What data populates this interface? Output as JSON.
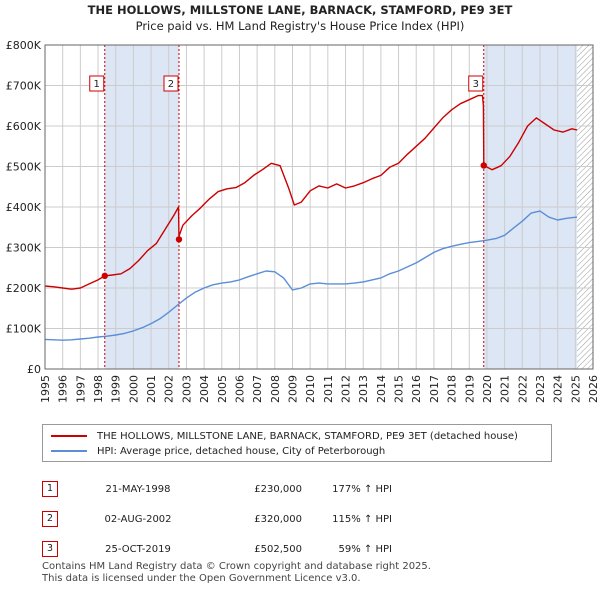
{
  "title_line1": "THE HOLLOWS, MILLSTONE LANE, BARNACK, STAMFORD, PE9 3ET",
  "title_line2": "Price paid vs. HM Land Registry's House Price Index (HPI)",
  "colors": {
    "property": "#cc0000",
    "hpi": "#5b8ed6",
    "shade": "#dce6f5",
    "grid": "#cccccc",
    "hatch": "#999999"
  },
  "chart_data": {
    "type": "line",
    "title": "THE HOLLOWS, MILLSTONE LANE, BARNACK, STAMFORD, PE9 3ET",
    "subtitle": "Price paid vs. HM Land Registry's House Price Index (HPI)",
    "xlabel": "",
    "ylabel": "",
    "xlim": [
      1995,
      2026
    ],
    "ylim": [
      0,
      800000
    ],
    "x_ticks": [
      1995,
      1996,
      1997,
      1998,
      1999,
      2000,
      2001,
      2002,
      2003,
      2004,
      2005,
      2006,
      2007,
      2008,
      2009,
      2010,
      2011,
      2012,
      2013,
      2014,
      2015,
      2016,
      2017,
      2018,
      2019,
      2020,
      2021,
      2022,
      2023,
      2024,
      2025,
      2026
    ],
    "y_ticks": [
      0,
      100000,
      200000,
      300000,
      400000,
      500000,
      600000,
      700000,
      800000
    ],
    "y_tick_labels": [
      "£0",
      "£100K",
      "£200K",
      "£300K",
      "£400K",
      "£500K",
      "£600K",
      "£700K",
      "£800K"
    ],
    "grid": true,
    "shaded_ranges": [
      [
        1998.38,
        2002.58
      ],
      [
        2019.82,
        2025.1
      ]
    ],
    "future_hatch_from": 2025.1,
    "series": [
      {
        "name": "THE HOLLOWS, MILLSTONE LANE, BARNACK, STAMFORD, PE9 3ET (detached house)",
        "color": "#cc0000",
        "x": [
          1995.0,
          1995.5,
          1996.0,
          1996.5,
          1997.0,
          1997.5,
          1998.0,
          1998.38,
          1998.8,
          1999.3,
          1999.8,
          2000.3,
          2000.8,
          2001.3,
          2001.8,
          2002.3,
          2002.55,
          2002.58,
          2002.6,
          2002.8,
          2003.3,
          2003.8,
          2004.3,
          2004.8,
          2005.3,
          2005.8,
          2006.3,
          2006.8,
          2007.3,
          2007.8,
          2008.3,
          2008.8,
          2009.1,
          2009.5,
          2010.0,
          2010.5,
          2011.0,
          2011.5,
          2012.0,
          2012.5,
          2013.0,
          2013.5,
          2014.0,
          2014.5,
          2015.0,
          2015.5,
          2016.0,
          2016.5,
          2017.0,
          2017.5,
          2018.0,
          2018.5,
          2019.0,
          2019.5,
          2019.75,
          2019.8,
          2019.82,
          2020.3,
          2020.8,
          2021.3,
          2021.8,
          2022.3,
          2022.8,
          2023.3,
          2023.8,
          2024.3,
          2024.8,
          2025.1
        ],
        "y": [
          205000,
          203000,
          200000,
          197000,
          200000,
          210000,
          220000,
          230000,
          232000,
          235000,
          248000,
          268000,
          292000,
          310000,
          345000,
          380000,
          400000,
          320000,
          330000,
          355000,
          378000,
          398000,
          420000,
          438000,
          445000,
          448000,
          460000,
          478000,
          492000,
          508000,
          502000,
          445000,
          405000,
          412000,
          440000,
          452000,
          447000,
          457000,
          447000,
          452000,
          460000,
          470000,
          478000,
          498000,
          508000,
          530000,
          550000,
          570000,
          595000,
          620000,
          640000,
          655000,
          665000,
          675000,
          675000,
          650000,
          502500,
          492000,
          502000,
          525000,
          560000,
          600000,
          620000,
          605000,
          590000,
          585000,
          593000,
          590000
        ]
      },
      {
        "name": "HPI: Average price, detached house, City of Peterborough",
        "color": "#5b8ed6",
        "x": [
          1995.0,
          1995.5,
          1996.0,
          1996.5,
          1997.0,
          1997.5,
          1998.0,
          1998.5,
          1999.0,
          1999.5,
          2000.0,
          2000.5,
          2001.0,
          2001.5,
          2002.0,
          2002.5,
          2003.0,
          2003.5,
          2004.0,
          2004.5,
          2005.0,
          2005.5,
          2006.0,
          2006.5,
          2007.0,
          2007.5,
          2008.0,
          2008.5,
          2009.0,
          2009.5,
          2010.0,
          2010.5,
          2011.0,
          2011.5,
          2012.0,
          2012.5,
          2013.0,
          2013.5,
          2014.0,
          2014.5,
          2015.0,
          2015.5,
          2016.0,
          2016.5,
          2017.0,
          2017.5,
          2018.0,
          2018.5,
          2019.0,
          2019.5,
          2020.0,
          2020.5,
          2021.0,
          2021.5,
          2022.0,
          2022.5,
          2023.0,
          2023.5,
          2024.0,
          2024.5,
          2025.1
        ],
        "y": [
          73000,
          72000,
          71000,
          72000,
          74000,
          76000,
          79000,
          81000,
          84000,
          88000,
          94000,
          102000,
          112000,
          124000,
          140000,
          158000,
          175000,
          190000,
          200000,
          208000,
          212000,
          215000,
          220000,
          228000,
          235000,
          242000,
          240000,
          225000,
          195000,
          200000,
          210000,
          212000,
          210000,
          210000,
          210000,
          212000,
          215000,
          220000,
          225000,
          235000,
          242000,
          252000,
          262000,
          275000,
          288000,
          297000,
          303000,
          308000,
          312000,
          315000,
          318000,
          322000,
          330000,
          348000,
          365000,
          385000,
          390000,
          375000,
          368000,
          372000,
          375000
        ]
      }
    ],
    "markers": [
      {
        "label": "1",
        "x": 1998.38,
        "y": 230000
      },
      {
        "label": "2",
        "x": 2002.58,
        "y": 320000
      },
      {
        "label": "3",
        "x": 2019.82,
        "y": 502500
      }
    ]
  },
  "legend": {
    "property": "THE HOLLOWS, MILLSTONE LANE, BARNACK, STAMFORD, PE9 3ET (detached house)",
    "hpi": "HPI: Average price, detached house, City of Peterborough"
  },
  "transactions": [
    {
      "num": "1",
      "date": "21-MAY-1998",
      "price": "£230,000",
      "pct": "177% ↑ HPI"
    },
    {
      "num": "2",
      "date": "02-AUG-2002",
      "price": "£320,000",
      "pct": "115% ↑ HPI"
    },
    {
      "num": "3",
      "date": "25-OCT-2019",
      "price": "£502,500",
      "pct": "59% ↑ HPI"
    }
  ],
  "footer": {
    "line1": "Contains HM Land Registry data © Crown copyright and database right 2025.",
    "line2": "This data is licensed under the Open Government Licence v3.0."
  }
}
